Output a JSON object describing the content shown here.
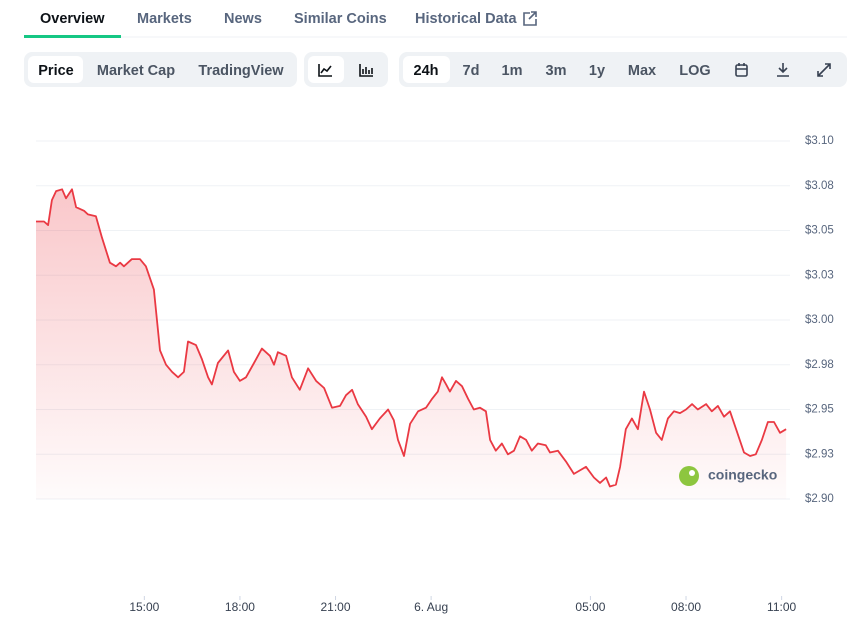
{
  "tabs": [
    "Overview",
    "Markets",
    "News",
    "Similar Coins",
    "Historical Data"
  ],
  "chart_modes": [
    "Price",
    "Market Cap",
    "TradingView"
  ],
  "ranges": [
    "24h",
    "7d",
    "1m",
    "3m",
    "1y",
    "Max",
    "LOG"
  ],
  "watermark": "coingecko",
  "chart_data": {
    "type": "area",
    "color": "#ea3943",
    "x": [
      11.6,
      11.85,
      11.98,
      12.1,
      12.23,
      12.42,
      12.54,
      12.73,
      12.86,
      13.11,
      13.23,
      13.48,
      13.67,
      13.92,
      14.11,
      14.24,
      14.36,
      14.61,
      14.86,
      15.05,
      15.3,
      15.49,
      15.68,
      15.87,
      16.06,
      16.24,
      16.37,
      16.62,
      16.81,
      17.0,
      17.12,
      17.31,
      17.63,
      17.81,
      18.0,
      18.19,
      18.44,
      18.69,
      18.94,
      19.07,
      19.19,
      19.45,
      19.63,
      19.88,
      20.14,
      20.39,
      20.64,
      20.89,
      21.14,
      21.33,
      21.52,
      21.7,
      21.96,
      22.14,
      22.39,
      22.65,
      22.83,
      22.96,
      23.15,
      23.34,
      23.59,
      23.84,
      24.03,
      24.21,
      24.34,
      24.47,
      24.59,
      24.78,
      24.97,
      25.16,
      25.34,
      25.53,
      25.72,
      25.85,
      26.03,
      26.22,
      26.41,
      26.6,
      26.79,
      26.98,
      27.16,
      27.35,
      27.6,
      27.73,
      27.98,
      28.23,
      28.48,
      28.67,
      28.86,
      29.11,
      29.3,
      29.49,
      29.61,
      29.8,
      29.93,
      30.11,
      30.3,
      30.49,
      30.68,
      30.87,
      31.06,
      31.24,
      31.43,
      31.62,
      31.81,
      32.0,
      32.19,
      32.37,
      32.63,
      32.81,
      33.0,
      33.19,
      33.38,
      33.57,
      33.82,
      34.01,
      34.19,
      34.38,
      34.57,
      34.76,
      34.95,
      35.14
    ],
    "values": [
      3.055,
      3.055,
      3.053,
      3.067,
      3.072,
      3.073,
      3.068,
      3.073,
      3.063,
      3.061,
      3.059,
      3.058,
      3.046,
      3.032,
      3.03,
      3.032,
      3.03,
      3.034,
      3.034,
      3.03,
      3.017,
      2.983,
      2.975,
      2.971,
      2.968,
      2.971,
      2.988,
      2.986,
      2.978,
      2.968,
      2.964,
      2.976,
      2.983,
      2.971,
      2.966,
      2.968,
      2.976,
      2.984,
      2.98,
      2.975,
      2.982,
      2.98,
      2.968,
      2.961,
      2.973,
      2.966,
      2.962,
      2.951,
      2.952,
      2.958,
      2.961,
      2.953,
      2.946,
      2.939,
      2.945,
      2.95,
      2.944,
      2.933,
      2.924,
      2.942,
      2.949,
      2.951,
      2.956,
      2.96,
      2.968,
      2.964,
      2.96,
      2.966,
      2.963,
      2.956,
      2.95,
      2.951,
      2.949,
      2.933,
      2.927,
      2.931,
      2.925,
      2.927,
      2.935,
      2.933,
      2.927,
      2.931,
      2.93,
      2.926,
      2.927,
      2.921,
      2.914,
      2.916,
      2.918,
      2.912,
      2.909,
      2.912,
      2.907,
      2.908,
      2.918,
      2.939,
      2.945,
      2.939,
      2.96,
      2.95,
      2.937,
      2.933,
      2.945,
      2.949,
      2.948,
      2.95,
      2.953,
      2.95,
      2.953,
      2.949,
      2.952,
      2.946,
      2.949,
      2.939,
      2.926,
      2.924,
      2.925,
      2.933,
      2.943,
      2.943,
      2.937,
      2.939
    ],
    "xlim": [
      11.6,
      35.2
    ],
    "xticks": [
      {
        "value": 15,
        "label": "15:00"
      },
      {
        "value": 18,
        "label": "18:00"
      },
      {
        "value": 21,
        "label": "21:00"
      },
      {
        "value": 24,
        "label": "6. Aug"
      },
      {
        "value": 29,
        "label": "05:00"
      },
      {
        "value": 32,
        "label": "08:00"
      },
      {
        "value": 35,
        "label": "11:00"
      }
    ],
    "ylim": [
      2.9,
      3.1
    ],
    "yticks": [
      {
        "value": 3.1,
        "label": "$3.10"
      },
      {
        "value": 3.075,
        "label": "$3.08"
      },
      {
        "value": 3.05,
        "label": "$3.05"
      },
      {
        "value": 3.025,
        "label": "$3.03"
      },
      {
        "value": 3.0,
        "label": "$3.00"
      },
      {
        "value": 2.975,
        "label": "$2.98"
      },
      {
        "value": 2.95,
        "label": "$2.95"
      },
      {
        "value": 2.925,
        "label": "$2.93"
      },
      {
        "value": 2.9,
        "label": "$2.90"
      }
    ],
    "grid": true
  }
}
